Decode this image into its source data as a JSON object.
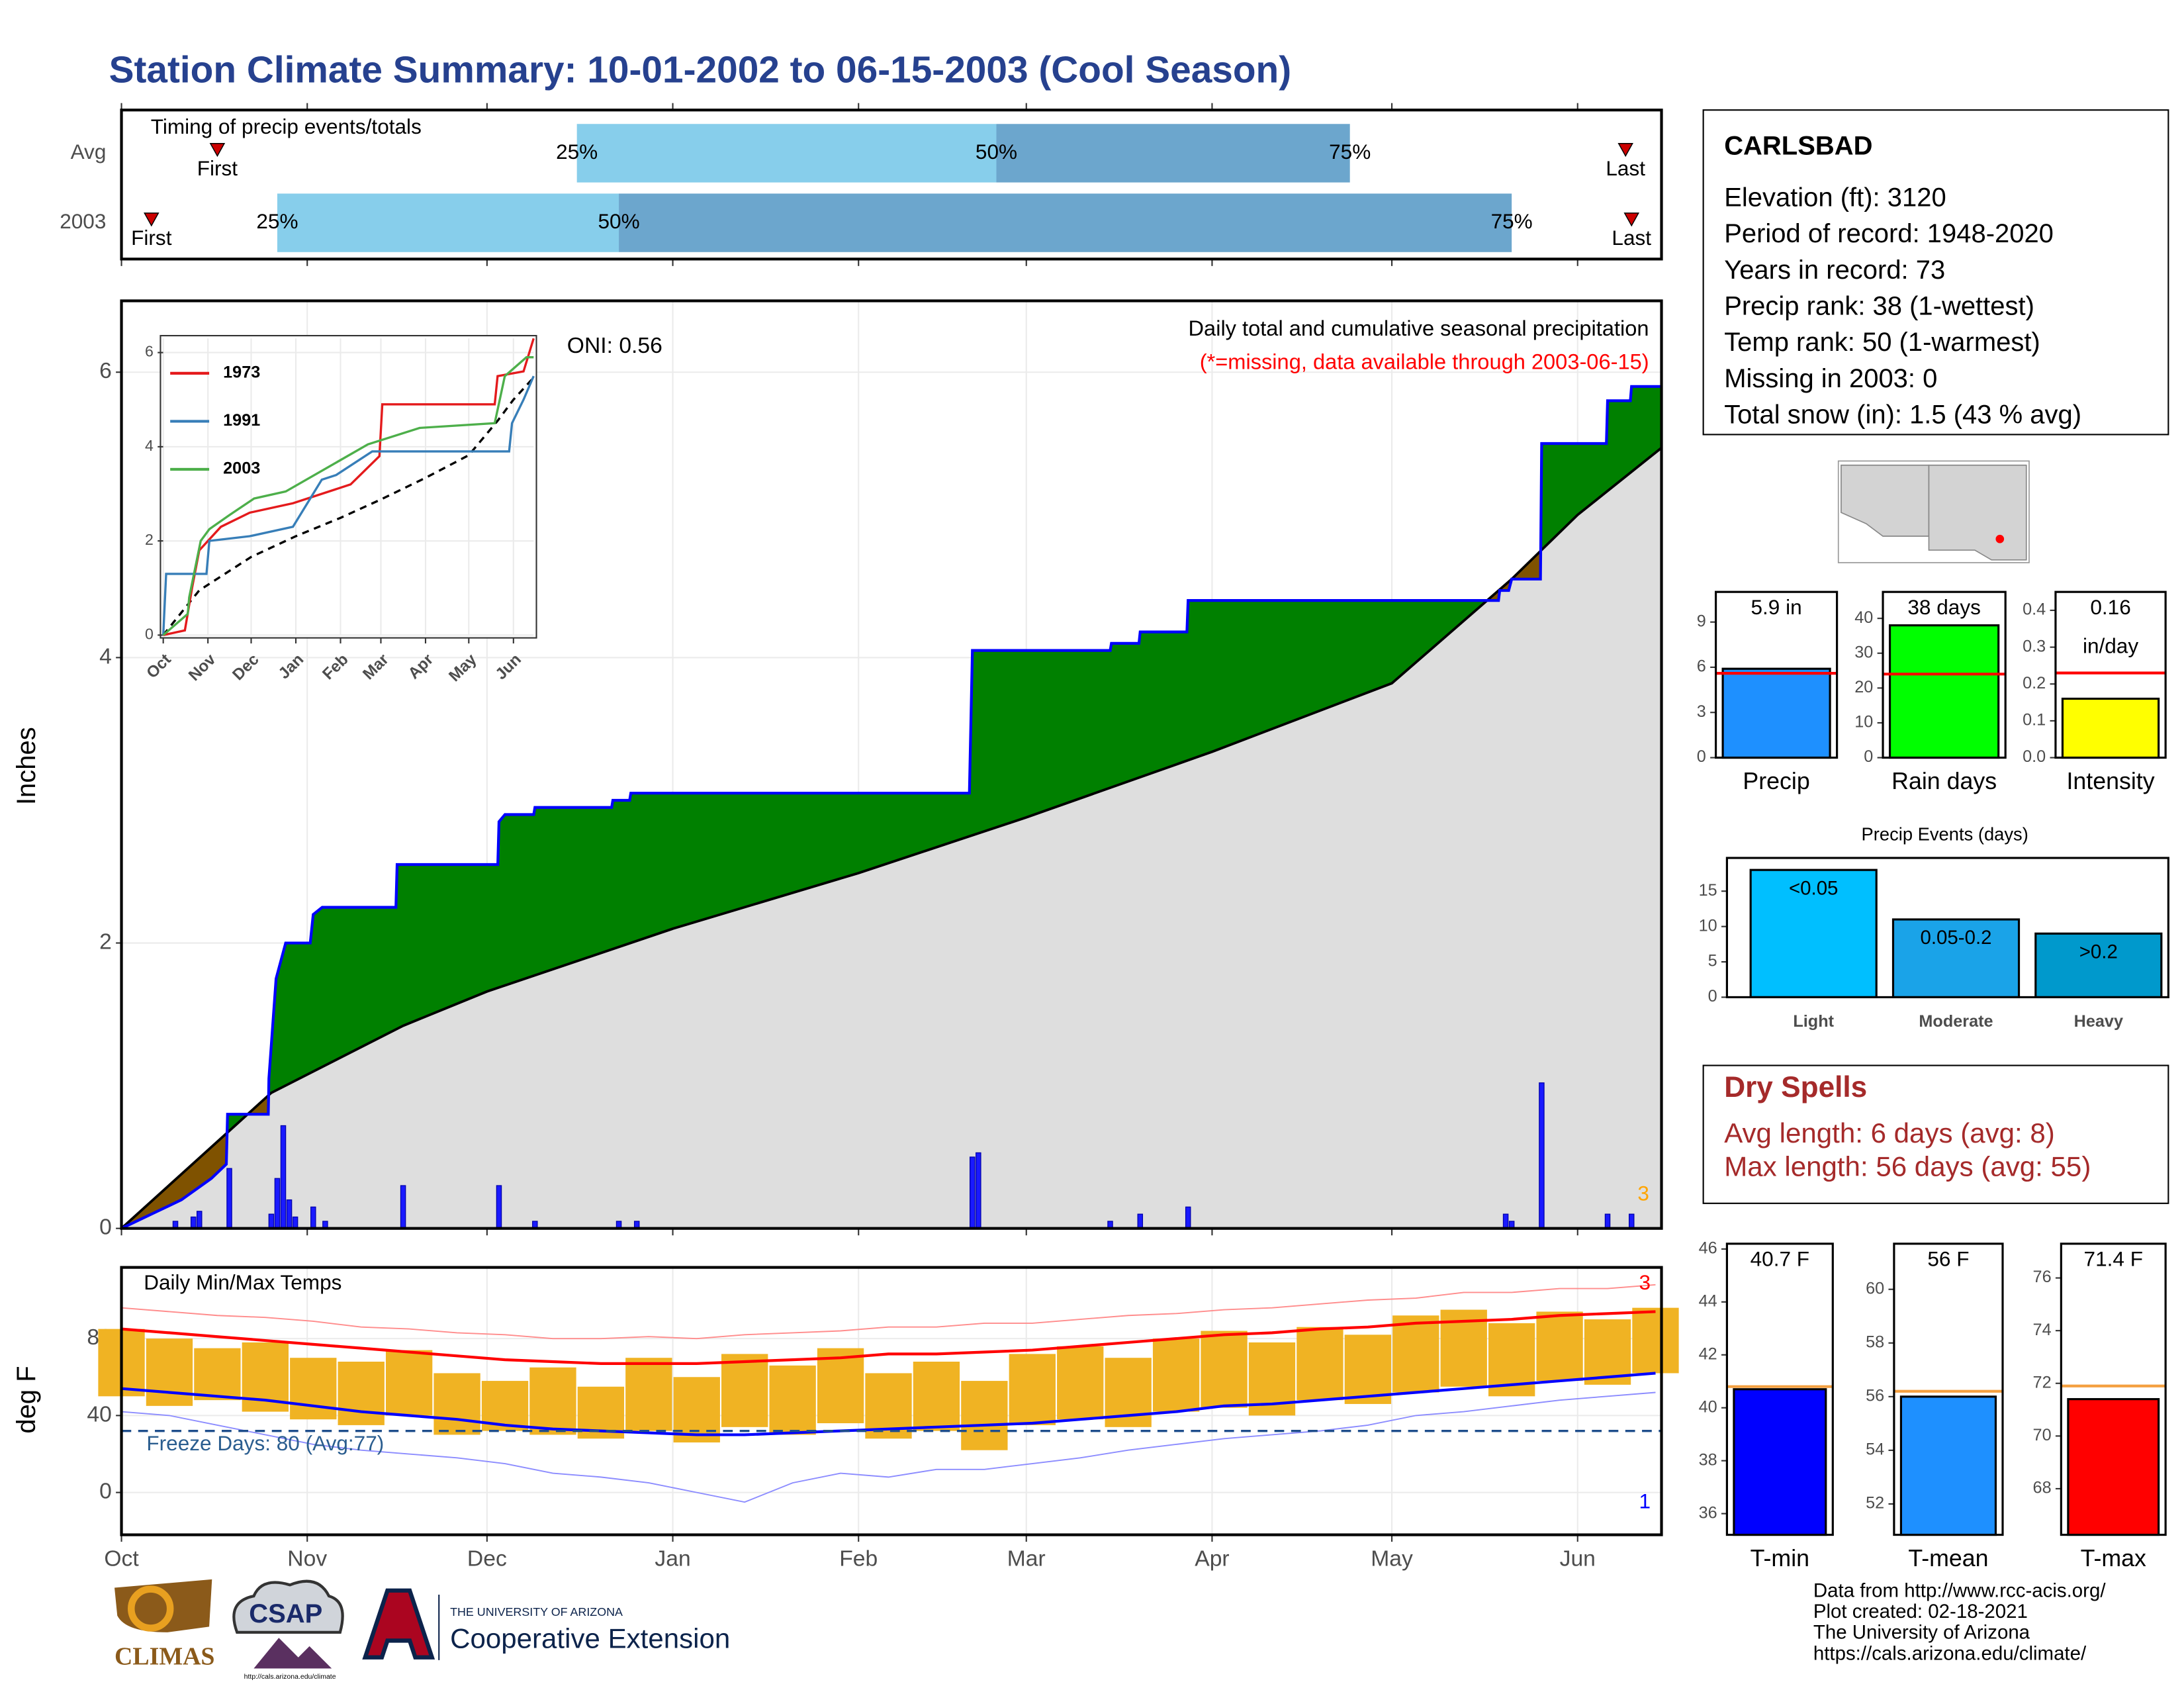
{
  "title": "Station Climate Summary: 10-01-2002 to 06-15-2003 (Cool Season)",
  "chart_data": [
    {
      "type": "timing",
      "title": "Timing of precip events/totals",
      "xlim": [
        0,
        257
      ],
      "xticks": [
        0,
        31,
        61,
        92,
        123,
        151,
        182,
        212,
        243
      ],
      "labels": {
        "first": "First",
        "q25": "25%",
        "q50": "50%",
        "q75": "75%",
        "last": "Last"
      },
      "colors": [
        "#87ceeb",
        "#6ca6cd"
      ],
      "marker_color": "#cc0000",
      "rows": [
        {
          "name": "Avg",
          "first": 16,
          "q25": 76,
          "q50": 146,
          "q75": 205,
          "last": 251
        },
        {
          "name": "2003",
          "first": 5,
          "q25": 26,
          "q50": 83,
          "q75": 232,
          "last": 252
        }
      ]
    },
    {
      "type": "area",
      "title": "Daily total and cumulative seasonal precipitation",
      "subtitle": "(*=missing, data available through 2003-06-15)",
      "annotation": "ONI: 0.56",
      "flag": "3",
      "ylabel": "Inches",
      "xlim": [
        0,
        257
      ],
      "ylim": [
        0,
        6.5
      ],
      "xticks": [
        0,
        31,
        61,
        92,
        123,
        151,
        182,
        212,
        243
      ],
      "yticks": [
        0,
        2,
        4,
        6
      ],
      "grid": true,
      "above_color": "#008000",
      "below_color": "#7f5200",
      "base_color": "#dedede",
      "cumulative": {
        "color": "#0000ff",
        "x": [
          0,
          5,
          10,
          15,
          17.5,
          17.7,
          24.5,
          24.6,
          25.8,
          27.4,
          31.5,
          32,
          33.5,
          45.8,
          46,
          62.8,
          63,
          64,
          68.8,
          69,
          81.8,
          82,
          84.8,
          85,
          141.5,
          142,
          165,
          165.2,
          169.8,
          170,
          177.8,
          178,
          229.8,
          230,
          231.5,
          232,
          236.8,
          237,
          247.8,
          248,
          251.8,
          252,
          257
        ],
        "values": [
          0,
          0.1,
          0.2,
          0.35,
          0.45,
          0.8,
          0.8,
          1.05,
          1.75,
          2.0,
          2.0,
          2.2,
          2.25,
          2.25,
          2.55,
          2.55,
          2.85,
          2.9,
          2.9,
          2.95,
          2.95,
          3.0,
          3.0,
          3.05,
          3.05,
          4.05,
          4.05,
          4.1,
          4.1,
          4.18,
          4.18,
          4.4,
          4.4,
          4.47,
          4.47,
          4.55,
          4.55,
          5.5,
          5.5,
          5.8,
          5.8,
          5.9,
          5.9
        ]
      },
      "average": {
        "color": "#000000",
        "x": [
          0,
          25,
          47,
          61,
          92,
          123,
          151,
          182,
          212,
          232,
          243,
          257
        ],
        "values": [
          0,
          0.95,
          1.42,
          1.66,
          2.1,
          2.49,
          2.88,
          3.34,
          3.82,
          4.55,
          5.0,
          5.47
        ]
      },
      "daily": {
        "color": "#1a1aff",
        "x": [
          9,
          12,
          13,
          18,
          25,
          26,
          27,
          28,
          29,
          32,
          34,
          47,
          63,
          69,
          83,
          86,
          142,
          143,
          165,
          170,
          178,
          231,
          232,
          237,
          248,
          252
        ],
        "values": [
          0.05,
          0.08,
          0.12,
          0.42,
          0.1,
          0.35,
          0.72,
          0.2,
          0.08,
          0.15,
          0.05,
          0.3,
          0.3,
          0.05,
          0.05,
          0.05,
          0.5,
          0.53,
          0.05,
          0.1,
          0.15,
          0.1,
          0.05,
          1.02,
          0.1,
          0.1
        ]
      }
    },
    {
      "type": "line",
      "xlim": [
        0,
        257
      ],
      "ylim": [
        0,
        6.3
      ],
      "yticks": [
        0,
        2,
        4,
        6
      ],
      "xticks": [
        {
          "value": 0,
          "label": "Oct"
        },
        {
          "value": 31,
          "label": "Nov"
        },
        {
          "value": 61,
          "label": "Dec"
        },
        {
          "value": 92,
          "label": "Jan"
        },
        {
          "value": 123,
          "label": "Feb"
        },
        {
          "value": 151,
          "label": "Mar"
        },
        {
          "value": 182,
          "label": "Apr"
        },
        {
          "value": 212,
          "label": "May"
        },
        {
          "value": 243,
          "label": "Jun"
        }
      ],
      "series": [
        {
          "name": "1973",
          "color": "#e41a1c",
          "x": [
            0,
            15,
            20,
            25,
            40,
            60,
            90,
            130,
            150,
            152,
            230,
            232,
            250,
            257
          ],
          "values": [
            0,
            0.1,
            1.0,
            1.8,
            2.3,
            2.6,
            2.8,
            3.2,
            3.8,
            4.9,
            4.9,
            5.5,
            5.6,
            6.3
          ]
        },
        {
          "name": "1991",
          "color": "#377eb8",
          "x": [
            0,
            2,
            30,
            32,
            60,
            90,
            110,
            120,
            145,
            240,
            242,
            250,
            257
          ],
          "values": [
            0,
            1.3,
            1.3,
            2.0,
            2.1,
            2.3,
            3.3,
            3.4,
            3.9,
            3.9,
            4.5,
            5.0,
            5.5
          ]
        },
        {
          "name": "2003",
          "color": "#4daf4a",
          "x": [
            0,
            17,
            18,
            26,
            32,
            46,
            63,
            85,
            142,
            178,
            230,
            237,
            252,
            257
          ],
          "values": [
            0,
            0.45,
            0.8,
            2.0,
            2.25,
            2.55,
            2.9,
            3.05,
            4.05,
            4.4,
            4.5,
            5.5,
            5.9,
            5.9
          ]
        }
      ],
      "average": {
        "color": "#000000",
        "x": [
          0,
          25,
          61,
          92,
          123,
          151,
          182,
          212,
          232,
          243,
          257
        ],
        "values": [
          0,
          0.95,
          1.66,
          2.1,
          2.49,
          2.88,
          3.34,
          3.82,
          4.55,
          5.0,
          5.47
        ]
      }
    },
    {
      "type": "temperature",
      "title": "Daily Min/Max Temps",
      "ylabel": "deg F",
      "xlim": [
        0,
        257
      ],
      "ylim": [
        -22,
        117
      ],
      "yticks": [
        0,
        40,
        80
      ],
      "xticks": [
        {
          "value": 0,
          "label": "Oct"
        },
        {
          "value": 31,
          "label": "Nov"
        },
        {
          "value": 61,
          "label": "Dec"
        },
        {
          "value": 92,
          "label": "Jan"
        },
        {
          "value": 123,
          "label": "Feb"
        },
        {
          "value": 151,
          "label": "Mar"
        },
        {
          "value": 182,
          "label": "Apr"
        },
        {
          "value": 212,
          "label": "May"
        },
        {
          "value": 243,
          "label": "Jun"
        }
      ],
      "freeze": 32,
      "freeze_label": "Freeze Days: 80 (Avg:77)",
      "high_flag": "3",
      "low_flag": "1",
      "bar_color": "#f0b323",
      "x": [
        0,
        8,
        16,
        24,
        32,
        40,
        48,
        56,
        64,
        72,
        80,
        88,
        96,
        104,
        112,
        120,
        128,
        136,
        144,
        152,
        160,
        168,
        176,
        184,
        192,
        200,
        208,
        216,
        224,
        232,
        240,
        248,
        256
      ],
      "high": [
        85,
        80,
        75,
        78,
        70,
        68,
        74,
        62,
        58,
        65,
        55,
        70,
        60,
        72,
        66,
        75,
        62,
        68,
        58,
        72,
        76,
        70,
        80,
        84,
        78,
        86,
        82,
        92,
        95,
        88,
        94,
        90,
        96
      ],
      "low": [
        50,
        45,
        48,
        42,
        38,
        35,
        40,
        30,
        32,
        30,
        28,
        32,
        26,
        34,
        30,
        36,
        28,
        32,
        22,
        35,
        38,
        34,
        42,
        44,
        40,
        48,
        46,
        52,
        55,
        50,
        58,
        56,
        62
      ],
      "avg_high": [
        85,
        83,
        81,
        79,
        77,
        75,
        73,
        71,
        69,
        68,
        67,
        67,
        67,
        68,
        69,
        70,
        72,
        72,
        73,
        74,
        76,
        78,
        80,
        82,
        83,
        85,
        86,
        88,
        89,
        90,
        92,
        93,
        94
      ],
      "avg_low": [
        54,
        52,
        50,
        48,
        45,
        42,
        40,
        38,
        35,
        33,
        32,
        31,
        30,
        30,
        31,
        32,
        33,
        34,
        35,
        36,
        38,
        40,
        42,
        45,
        46,
        48,
        50,
        52,
        54,
        56,
        58,
        60,
        62
      ],
      "record_high": [
        96,
        94,
        92,
        91,
        89,
        86,
        85,
        83,
        82,
        80,
        80,
        81,
        80,
        82,
        83,
        84,
        86,
        86,
        88,
        88,
        90,
        92,
        93,
        95,
        96,
        98,
        100,
        101,
        104,
        104,
        106,
        106,
        108
      ],
      "record_low": [
        42,
        40,
        35,
        30,
        25,
        22,
        20,
        18,
        15,
        10,
        8,
        5,
        0,
        -5,
        5,
        10,
        8,
        12,
        12,
        15,
        18,
        22,
        25,
        28,
        30,
        32,
        35,
        40,
        42,
        45,
        48,
        50,
        52
      ]
    },
    {
      "type": "bar",
      "categories": [
        "Precip"
      ],
      "values": [
        5.9
      ],
      "value_labels": [
        "5.9 in"
      ],
      "average": 5.6,
      "average_color": "#ff0000",
      "color": "#1e90ff",
      "ylim": [
        0,
        11
      ],
      "yticks": [
        0,
        3,
        6,
        9
      ]
    },
    {
      "type": "bar",
      "categories": [
        "Rain days"
      ],
      "values": [
        38
      ],
      "value_labels": [
        "38 days"
      ],
      "average": 24,
      "average_color": "#ff0000",
      "color": "#00ff00",
      "ylim": [
        0,
        47.6
      ],
      "yticks": [
        0,
        10,
        20,
        30,
        40
      ]
    },
    {
      "type": "bar",
      "categories": [
        "Intensity"
      ],
      "values": [
        0.16
      ],
      "value_labels": [
        "0.16"
      ],
      "unit": "in/day",
      "average": 0.23,
      "average_color": "#ff0000",
      "color": "#ffff00",
      "ylim": [
        0,
        0.45
      ],
      "yticks": [
        {
          "value": 0,
          "label": "0.0"
        },
        0.1,
        0.2,
        0.3,
        0.4
      ]
    },
    {
      "type": "bar",
      "title": "Precip Events (days)",
      "categories": [
        "Light",
        "Moderate",
        "Heavy"
      ],
      "values": [
        18,
        11,
        9
      ],
      "bar_labels": [
        "<0.05",
        "0.05-0.2",
        ">0.2"
      ],
      "colors": [
        "#00bfff",
        "#1aa3e8",
        "#0099cc"
      ],
      "ylim": [
        0,
        19.7
      ],
      "yticks": [
        0,
        5,
        10,
        15
      ]
    },
    {
      "type": "bar",
      "categories": [
        "T-min"
      ],
      "values": [
        40.7
      ],
      "value_labels": [
        "40.7 F"
      ],
      "average": 40.8,
      "average_color": "#f4a040",
      "color": "#0000ff",
      "ylim": [
        35.2,
        46.2
      ],
      "yticks": [
        36,
        38,
        40,
        42,
        44,
        46
      ]
    },
    {
      "type": "bar",
      "categories": [
        "T-mean"
      ],
      "values": [
        56
      ],
      "value_labels": [
        "56 F"
      ],
      "average": 56.2,
      "average_color": "#f4a040",
      "color": "#1e90ff",
      "ylim": [
        50.85,
        61.7
      ],
      "yticks": [
        52,
        54,
        56,
        58,
        60
      ]
    },
    {
      "type": "bar",
      "categories": [
        "T-max"
      ],
      "values": [
        71.4
      ],
      "value_labels": [
        "71.4 F"
      ],
      "average": 71.9,
      "average_color": "#f4a040",
      "color": "#ff0000",
      "ylim": [
        66.25,
        77.3
      ],
      "yticks": [
        68,
        70,
        72,
        74,
        76
      ]
    }
  ],
  "station": {
    "name": "CARLSBAD",
    "lines": [
      "Elevation (ft): 3120",
      "Period of record: 1948-2020",
      "Years in record: 73",
      "Precip rank: 38 (1-wettest)",
      "Temp rank: 50 (1-warmest)",
      "Missing in 2003: 0",
      "Total snow (in): 1.5 (43 % avg)"
    ]
  },
  "dry_spells": {
    "title": "Dry Spells",
    "lines": [
      "Avg length: 6 days (avg: 8)",
      "Max length: 56 days (avg: 55)"
    ]
  },
  "footer": [
    "Data from http://www.rcc-acis.org/",
    "Plot created: 02-18-2021",
    "The University of Arizona",
    "https://cals.arizona.edu/climate/"
  ],
  "logos": {
    "climas": "CLIMAS",
    "csap": "CSAP",
    "csap_url": "http://cals.arizona.edu/climate",
    "university": "THE UNIVERSITY OF ARIZONA",
    "extension": "Cooperative Extension"
  }
}
